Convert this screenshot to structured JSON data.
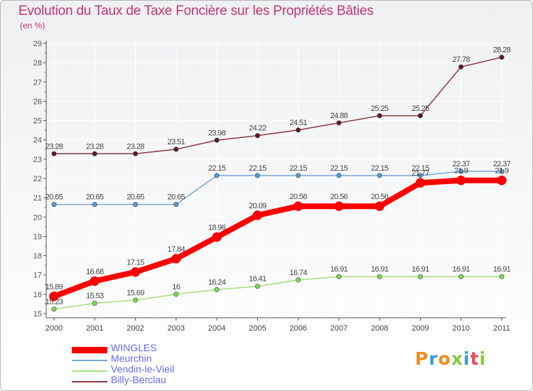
{
  "title": "Evolution du Taux de Taxe Foncière sur les Propriétés Bâties",
  "unit_label": "(en %)",
  "logo": {
    "text": "Proxiti",
    "colors": [
      "#f08c1e",
      "#3a9ad9",
      "#f08c1e",
      "#8cc63f",
      "#3a9ad9",
      "#e84a5f",
      "#8cc63f"
    ]
  },
  "chart_data": {
    "type": "line",
    "title": "Evolution du Taux de Taxe Foncière sur les Propriétés Bâties",
    "ylabel": "(en %)",
    "xlabel": "",
    "ylim": [
      15,
      29
    ],
    "yticks": [
      15,
      16,
      17,
      18,
      19,
      20,
      21,
      22,
      23,
      24,
      25,
      26,
      27,
      28,
      29
    ],
    "categories": [
      "2000",
      "2001",
      "2002",
      "2003",
      "2004",
      "2005",
      "2006",
      "2007",
      "2008",
      "2009",
      "2010",
      "2011"
    ],
    "legend_position": "bottom-left",
    "series": [
      {
        "name": "WINGLES",
        "line_color": "#ff0000",
        "marker_color": "#ff0000",
        "values": [
          15.89,
          16.68,
          17.15,
          17.84,
          18.96,
          20.09,
          20.56,
          20.56,
          20.56,
          21.77,
          21.9,
          21.9
        ],
        "labels": [
          "15.89",
          "16.68",
          "17.15",
          "17.84",
          "18.96",
          "20.09",
          "20.56",
          "20.56",
          "20.56",
          "21.77",
          "21.9",
          "21.9"
        ]
      },
      {
        "name": "Meurchin",
        "line_color": "#7ba7d6",
        "marker_color": "#5b9bd5",
        "values": [
          20.65,
          20.65,
          20.65,
          20.65,
          22.15,
          22.15,
          22.15,
          22.15,
          22.15,
          22.15,
          22.37,
          22.37
        ],
        "labels": [
          "20.65",
          "20.65",
          "20.65",
          "20.65",
          "22.15",
          "22.15",
          "22.15",
          "22.15",
          "22.15",
          "22.15",
          "22.37",
          "22.37"
        ]
      },
      {
        "name": "Vendin-le-Vieil",
        "line_color": "#a8de7e",
        "marker_color": "#7ed957",
        "values": [
          15.23,
          15.53,
          15.69,
          16,
          16.24,
          16.41,
          16.74,
          16.91,
          16.91,
          16.91,
          16.91,
          16.91
        ],
        "labels": [
          "15.23",
          "15.53",
          "15.69",
          "16",
          "16.24",
          "16.41",
          "16.74",
          "16.91",
          "16.91",
          "16.91",
          "16.91",
          "16.91"
        ]
      },
      {
        "name": "Billy-Berclau",
        "line_color": "#8b3a44",
        "marker_color": "#5c1a24",
        "values": [
          23.28,
          23.28,
          23.28,
          23.51,
          23.98,
          24.22,
          24.51,
          24.88,
          25.25,
          25.25,
          27.78,
          28.28
        ],
        "labels": [
          "23.28",
          "23.28",
          "23.28",
          "23.51",
          "23.98",
          "24.22",
          "24.51",
          "24.88",
          "25.25",
          "25.25",
          "27.78",
          "28.28"
        ]
      }
    ]
  }
}
